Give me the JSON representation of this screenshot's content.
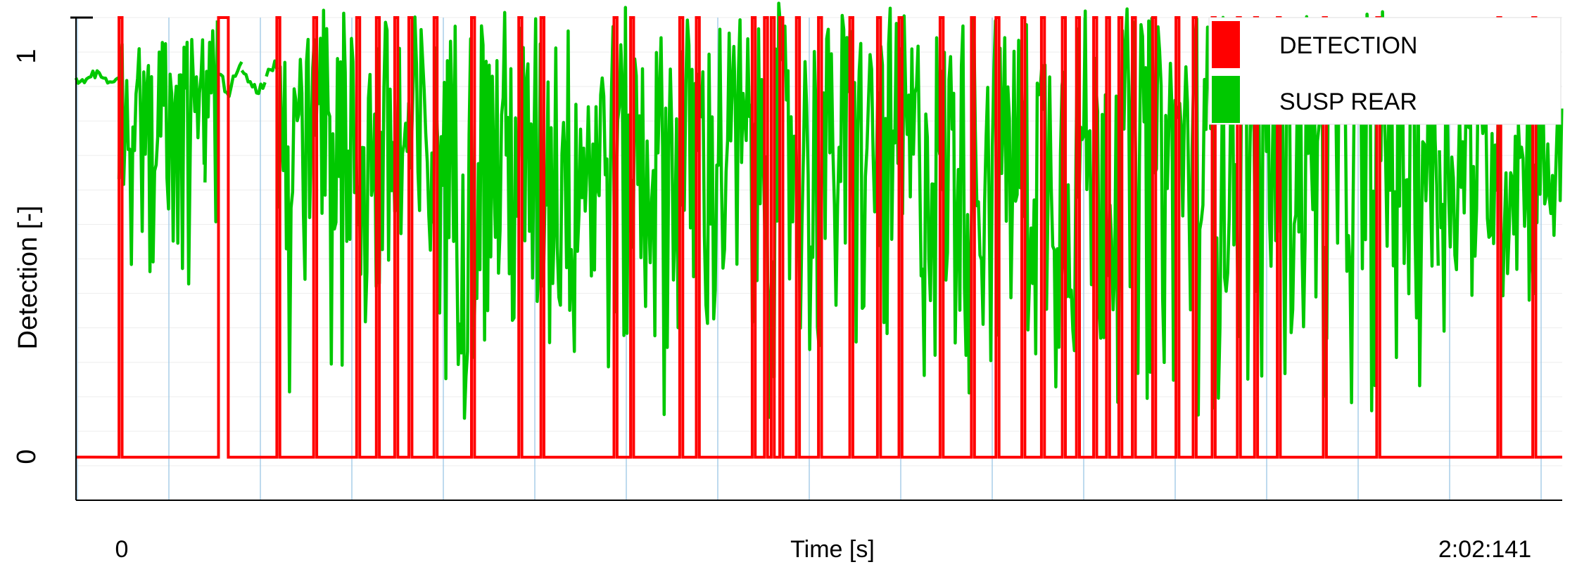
{
  "chart_data": {
    "type": "line",
    "ylabel": "Detection [-]",
    "xlabel": "Time [s]",
    "x_tick_labels": [
      "0",
      "2:02:141"
    ],
    "y_tick_labels": [
      "0",
      "1"
    ],
    "ylim": [
      -0.1,
      1.02
    ],
    "xlim": [
      -0.7,
      23.5
    ],
    "legend_position": "top-right",
    "grid": true,
    "series": [
      {
        "name": "DETECTION",
        "color": "#ff0000",
        "kind": "step",
        "pulses": [
          [
            0.0,
            0.05
          ],
          [
            1.62,
            1.78
          ],
          [
            2.57,
            2.62
          ],
          [
            3.17,
            3.22
          ],
          [
            3.87,
            3.92
          ],
          [
            4.19,
            4.24
          ],
          [
            4.49,
            4.54
          ],
          [
            4.72,
            4.77
          ],
          [
            5.13,
            5.18
          ],
          [
            5.74,
            5.79
          ],
          [
            6.51,
            6.56
          ],
          [
            6.87,
            6.92
          ],
          [
            8.06,
            8.11
          ],
          [
            8.33,
            8.38
          ],
          [
            9.13,
            9.18
          ],
          [
            9.4,
            9.45
          ],
          [
            10.31,
            10.36
          ],
          [
            10.51,
            10.56
          ],
          [
            10.62,
            10.67
          ],
          [
            10.76,
            10.81
          ],
          [
            11.03,
            11.08
          ],
          [
            11.39,
            11.44
          ],
          [
            11.9,
            11.95
          ],
          [
            12.35,
            12.4
          ],
          [
            12.7,
            12.75
          ],
          [
            13.37,
            13.42
          ],
          [
            13.88,
            13.93
          ],
          [
            14.28,
            14.33
          ],
          [
            14.7,
            14.75
          ],
          [
            15.02,
            15.07
          ],
          [
            15.36,
            15.41
          ],
          [
            15.59,
            15.64
          ],
          [
            15.87,
            15.92
          ],
          [
            16.08,
            16.13
          ],
          [
            16.28,
            16.33
          ],
          [
            16.5,
            16.55
          ],
          [
            16.83,
            16.88
          ],
          [
            17.21,
            17.26
          ],
          [
            17.49,
            17.54
          ],
          [
            17.8,
            17.85
          ],
          [
            18.21,
            18.26
          ],
          [
            18.49,
            18.54
          ],
          [
            18.86,
            18.91
          ],
          [
            19.61,
            19.66
          ],
          [
            20.48,
            20.53
          ],
          [
            22.45,
            22.5
          ],
          [
            23.02,
            23.07
          ]
        ]
      },
      {
        "name": "SUSP REAR",
        "color": "#00c800",
        "kind": "noise",
        "segments": [
          {
            "x0": -0.7,
            "x1": 0.0,
            "lo": 0.86,
            "hi": 0.9
          },
          {
            "x0": 0.0,
            "x1": 1.4,
            "lo": 0.36,
            "hi": 1.0
          },
          {
            "x0": 1.4,
            "x1": 1.62,
            "lo": 0.44,
            "hi": 1.06
          },
          {
            "x0": 1.62,
            "x1": 2.0,
            "lo": 0.82,
            "hi": 0.95
          },
          {
            "x0": 2.0,
            "x1": 2.4,
            "lo": 0.84,
            "hi": 0.9
          },
          {
            "x0": 2.4,
            "x1": 2.6,
            "lo": 0.8,
            "hi": 0.94
          },
          {
            "x0": 2.6,
            "x1": 21.5,
            "lo": 0.06,
            "hi": 1.06
          },
          {
            "x0": 21.5,
            "x1": 23.5,
            "lo": 0.28,
            "hi": 0.9
          }
        ]
      }
    ]
  }
}
